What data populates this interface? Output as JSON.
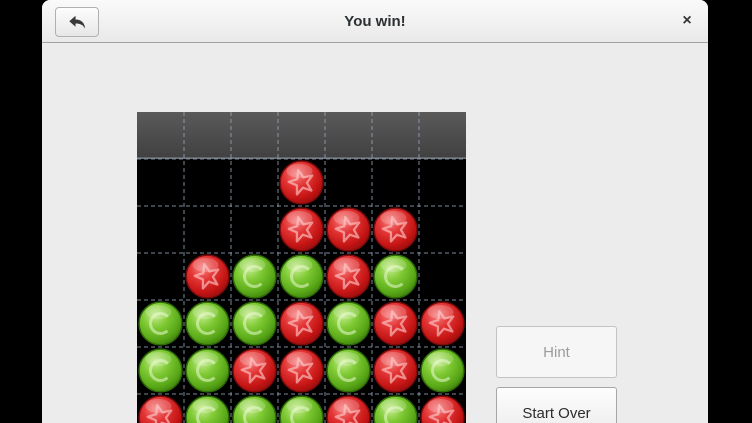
{
  "header": {
    "title": "You win!",
    "close_glyph": "×",
    "back_icon": "undo-back-arrow"
  },
  "sidebar": {
    "hint_label": "Hint",
    "hint_enabled": false,
    "start_over_label": "Start Over"
  },
  "board": {
    "columns": 7,
    "rows": 6,
    "cell_size": 47,
    "drop_strip": "empty-gray-strip",
    "grid": [
      "...R...",
      "...RRR.",
      ".RGGRG.",
      "GGGRGRR",
      "GGRRGRG",
      "RGGGRGR"
    ],
    "legend": {
      "R": "red-marble-star",
      "G": "green-marble-ring",
      ".": "empty"
    },
    "colors": {
      "red_main": "#d32424",
      "red_rim": "#7e0b0b",
      "green_main": "#63b81f",
      "green_rim": "#2e6a07",
      "board_bg": "#000000",
      "grid_line": "#90a2b6",
      "strip_top": "#5a5a5a",
      "strip_bottom": "#404040"
    }
  }
}
